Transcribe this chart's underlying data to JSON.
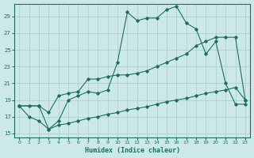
{
  "xlabel": "Humidex (Indice chaleur)",
  "bg_color": "#cce8e8",
  "grid_color": "#aacccc",
  "line_color": "#1a7060",
  "xlim": [
    -0.5,
    23.5
  ],
  "ylim": [
    14.5,
    30.5
  ],
  "xticks": [
    0,
    1,
    2,
    3,
    4,
    5,
    6,
    7,
    8,
    9,
    10,
    11,
    12,
    13,
    14,
    15,
    16,
    17,
    18,
    19,
    20,
    21,
    22,
    23
  ],
  "yticks": [
    15,
    17,
    19,
    21,
    23,
    25,
    27,
    29
  ],
  "line1_x": [
    0,
    1,
    2,
    3,
    4,
    5,
    6,
    7,
    8,
    9,
    10,
    11,
    12,
    13,
    14,
    15,
    16,
    17,
    18,
    19,
    20,
    21,
    22,
    23
  ],
  "line1_y": [
    18.3,
    17.0,
    16.5,
    15.5,
    16.5,
    19.0,
    19.5,
    20.0,
    19.8,
    20.2,
    23.5,
    29.5,
    28.5,
    28.8,
    28.8,
    29.8,
    30.2,
    28.2,
    27.5,
    24.5,
    26.0,
    21.0,
    18.5,
    18.5
  ],
  "line2_x": [
    0,
    2,
    3,
    4,
    5,
    6,
    7,
    8,
    9,
    10,
    11,
    12,
    13,
    14,
    15,
    16,
    17,
    18,
    19,
    20,
    21,
    22,
    23
  ],
  "line2_y": [
    18.3,
    18.3,
    17.5,
    19.5,
    19.8,
    20.0,
    21.5,
    21.5,
    21.8,
    22.0,
    22.0,
    22.2,
    22.5,
    23.0,
    23.5,
    24.0,
    24.5,
    25.5,
    26.0,
    26.5,
    26.5,
    26.5,
    19.0
  ],
  "line3_x": [
    0,
    1,
    2,
    3,
    4,
    5,
    6,
    7,
    8,
    9,
    10,
    11,
    12,
    13,
    14,
    15,
    16,
    17,
    18,
    19,
    20,
    21,
    22,
    23
  ],
  "line3_y": [
    18.3,
    18.3,
    18.3,
    15.5,
    16.0,
    16.2,
    16.5,
    16.8,
    17.0,
    17.3,
    17.5,
    17.8,
    18.0,
    18.2,
    18.5,
    18.8,
    19.0,
    19.2,
    19.5,
    19.8,
    20.0,
    20.2,
    20.5,
    19.0
  ]
}
